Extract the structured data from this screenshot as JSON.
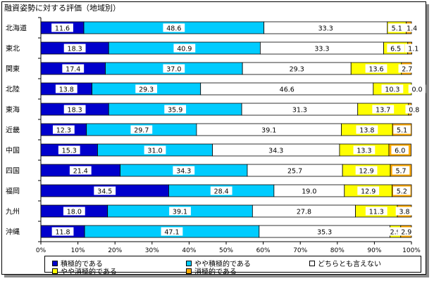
{
  "chart_data": {
    "type": "bar",
    "orientation": "horizontal",
    "stacked": "percent",
    "title": "融資姿勢に対する評価（地域別）",
    "categories": [
      "北海道",
      "東北",
      "関東",
      "北陸",
      "東海",
      "近畿",
      "中国",
      "四国",
      "福岡",
      "九州",
      "沖縄"
    ],
    "series": [
      {
        "name": "積極的である",
        "color": "#0000cc",
        "values": [
          11.6,
          18.3,
          17.4,
          13.8,
          18.3,
          12.3,
          15.3,
          21.4,
          34.5,
          18.0,
          11.8
        ]
      },
      {
        "name": "やや積極的である",
        "color": "#00ccff",
        "values": [
          48.6,
          40.9,
          37.0,
          29.3,
          35.9,
          29.7,
          31.0,
          34.3,
          28.4,
          39.1,
          47.1
        ]
      },
      {
        "name": "どちらとも言えない",
        "color": "#ffffff",
        "values": [
          33.3,
          33.3,
          29.3,
          46.6,
          31.3,
          39.1,
          34.3,
          25.7,
          19.0,
          27.8,
          35.3
        ]
      },
      {
        "name": "やや消極的である",
        "color": "#ffff00",
        "values": [
          5.1,
          6.5,
          13.6,
          10.3,
          13.7,
          13.8,
          13.3,
          12.9,
          12.9,
          11.3,
          2.9
        ]
      },
      {
        "name": "消極的である",
        "color": "#ffaa00",
        "values": [
          1.4,
          1.1,
          2.7,
          0.0,
          0.8,
          5.1,
          6.0,
          5.7,
          5.2,
          3.8,
          2.9
        ]
      }
    ],
    "xlim": [
      0,
      100
    ],
    "xticks": [
      "0%",
      "10%",
      "20%",
      "30%",
      "40%",
      "50%",
      "60%",
      "70%",
      "80%",
      "90%",
      "100%"
    ],
    "legend_position": "bottom",
    "grid": false
  }
}
